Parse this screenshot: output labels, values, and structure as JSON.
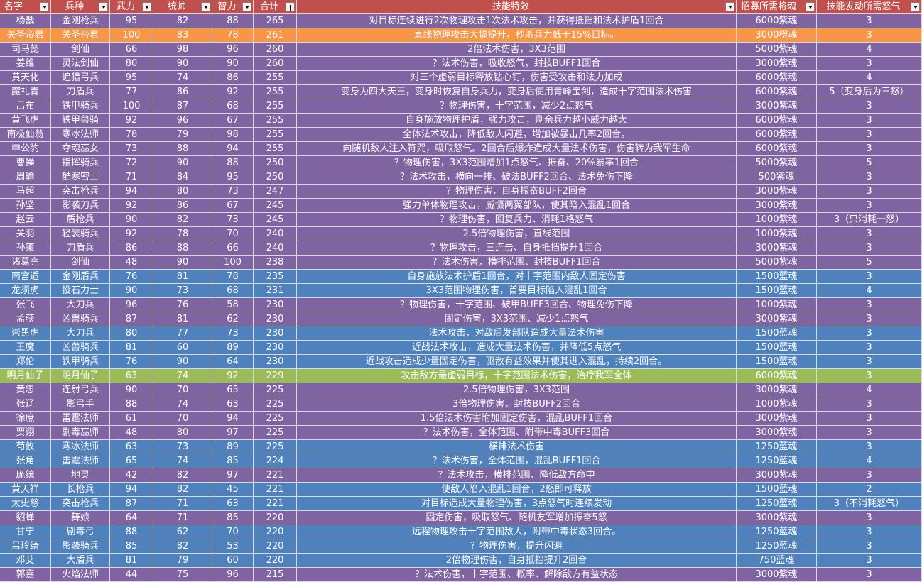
{
  "columns": [
    "名字",
    "兵种",
    "武力",
    "统帅",
    "智力",
    "合计",
    "技能特效",
    "招募所需将魂",
    "技能发动所需怒气"
  ],
  "rows": [
    {
      "name": "杨戬",
      "type": "金刚枪兵",
      "str": "95",
      "lead": "82",
      "int": "88",
      "total": "265",
      "effect": "对目标连续进行2次物理攻击1次法术攻击，并获得抵挡和法术护盾1回合",
      "cost": "6000紫魂",
      "rage": "3",
      "color": "purple"
    },
    {
      "name": "关圣帝君",
      "type": "关圣帝君",
      "str": "100",
      "lead": "83",
      "int": "78",
      "total": "261",
      "effect": "直线物理攻击大幅提升，秒杀兵力低于15%目标。",
      "cost": "3000橙魂",
      "rage": "3",
      "color": "orange"
    },
    {
      "name": "司马懿",
      "type": "剑仙",
      "str": "66",
      "lead": "98",
      "int": "96",
      "total": "260",
      "effect": "2倍法术伤害，3X3范围",
      "cost": "5000紫魂",
      "rage": "4",
      "color": "purple"
    },
    {
      "name": "姜维",
      "type": "灵法剑仙",
      "str": "80",
      "lead": "90",
      "int": "90",
      "total": "260",
      "effect": "？法术伤害，吸收怒气，封技BUFF1回合",
      "cost": "3000紫魂",
      "rage": "3",
      "color": "purple"
    },
    {
      "name": "黄天化",
      "type": "追猎弓兵",
      "str": "95",
      "lead": "74",
      "int": "86",
      "total": "255",
      "effect": "对三个虚弱目标释放钻心钉，伤害受攻击和法力加成",
      "cost": "6000紫魂",
      "rage": "4",
      "color": "purple"
    },
    {
      "name": "魔礼青",
      "type": "刀盾兵",
      "str": "77",
      "lead": "86",
      "int": "92",
      "total": "255",
      "effect": "变身为四大天王，变身时恢复自身兵力，变身后使用青峰宝剑，造成十字范围法术伤害",
      "cost": "6000紫魂",
      "rage": "5（变身后为三怒）",
      "color": "purple"
    },
    {
      "name": "吕布",
      "type": "铁甲骑兵",
      "str": "100",
      "lead": "87",
      "int": "68",
      "total": "255",
      "effect": "？物理伤害，十字范围，减少2点怒气",
      "cost": "3000紫魂",
      "rage": "3",
      "color": "purple"
    },
    {
      "name": "黄飞虎",
      "type": "铁甲兽骑",
      "str": "92",
      "lead": "96",
      "int": "67",
      "total": "255",
      "effect": "自身施放物理护盾，强力攻击，剩余兵力越小威力越大",
      "cost": "6000紫魂",
      "rage": "3",
      "color": "purple"
    },
    {
      "name": "南极仙翁",
      "type": "寒冰法师",
      "str": "78",
      "lead": "79",
      "int": "98",
      "total": "255",
      "effect": "全体法术攻击，降低敌人闪避，增加被暴击几率2回合。",
      "cost": "6000紫魂",
      "rage": "3",
      "color": "purple"
    },
    {
      "name": "申公豹",
      "type": "夺魂巫女",
      "str": "73",
      "lead": "88",
      "int": "94",
      "total": "255",
      "effect": "向随机敌人注入符咒，吸取怒气。2回合后爆炸造成大量法术伤害，伤害转为我军生命",
      "cost": "6000紫魂",
      "rage": "3",
      "color": "purple"
    },
    {
      "name": "曹操",
      "type": "指挥骑兵",
      "str": "72",
      "lead": "90",
      "int": "88",
      "total": "250",
      "effect": "？物理伤害，3X3范围增加1点怒气、振奋、20%暴率1回合",
      "cost": "5000紫魂",
      "rage": "5",
      "color": "purple"
    },
    {
      "name": "周瑜",
      "type": "酷寒密士",
      "str": "71",
      "lead": "84",
      "int": "95",
      "total": "250",
      "effect": "？法术攻击，横向一排、破法BUFF2回合、法术免伤下降",
      "cost": "500紫魂",
      "rage": "3",
      "color": "purple"
    },
    {
      "name": "马超",
      "type": "突击枪兵",
      "str": "94",
      "lead": "80",
      "int": "73",
      "total": "247",
      "effect": "？物理伤害，自身振奋BUFF2回合",
      "cost": "3000紫魂",
      "rage": "3",
      "color": "purple"
    },
    {
      "name": "孙坚",
      "type": "影袭刀兵",
      "str": "92",
      "lead": "86",
      "int": "67",
      "total": "245",
      "effect": "强力单体物理攻击，威慑两翼部队，使其陷入混乱1回合",
      "cost": "3000紫魂",
      "rage": "3",
      "color": "purple"
    },
    {
      "name": "赵云",
      "type": "盾枪兵",
      "str": "90",
      "lead": "82",
      "int": "73",
      "total": "245",
      "effect": "？物理伤害，回复兵力、消耗1格怒气",
      "cost": "1000紫魂",
      "rage": "3（只消耗一怒）",
      "color": "purple"
    },
    {
      "name": "关羽",
      "type": "轻装骑兵",
      "str": "92",
      "lead": "78",
      "int": "70",
      "total": "240",
      "effect": "2.5倍物理伤害，直线范围",
      "cost": "1000紫魂",
      "rage": "3",
      "color": "purple"
    },
    {
      "name": "孙策",
      "type": "刀盾兵",
      "str": "86",
      "lead": "88",
      "int": "66",
      "total": "240",
      "effect": "？物理攻击，三连击、自身抵挡提升1回合",
      "cost": "3000紫魂",
      "rage": "3",
      "color": "purple"
    },
    {
      "name": "诸葛亮",
      "type": "剑仙",
      "str": "48",
      "lead": "90",
      "int": "100",
      "total": "238",
      "effect": "？法术伤害，横排范围、封技BUFF1回合",
      "cost": "5000紫魂",
      "rage": "5",
      "color": "purple"
    },
    {
      "name": "南宫适",
      "type": "金刚盾兵",
      "str": "76",
      "lead": "81",
      "int": "78",
      "total": "235",
      "effect": "自身施放法术护盾1回合，对十字范围内敌人固定伤害",
      "cost": "1500蓝魂",
      "rage": "3",
      "color": "blue"
    },
    {
      "name": "龙须虎",
      "type": "投石力士",
      "str": "90",
      "lead": "73",
      "int": "68",
      "total": "231",
      "effect": "3X3范围物理伤害，首要目标陷入混乱1回合",
      "cost": "1500蓝魂",
      "rage": "4",
      "color": "blue"
    },
    {
      "name": "张飞",
      "type": "大刀兵",
      "str": "96",
      "lead": "76",
      "int": "58",
      "total": "230",
      "effect": "？物理伤害，十字范围、破甲BUFF3回合、物理免伤下降",
      "cost": "1000紫魂",
      "rage": "3",
      "color": "purple"
    },
    {
      "name": "孟获",
      "type": "凶兽骑兵",
      "str": "87",
      "lead": "81",
      "int": "62",
      "total": "230",
      "effect": "固定伤害，3X3范围、减少1点怒气",
      "cost": "3000紫魂",
      "rage": "3",
      "color": "purple"
    },
    {
      "name": "崇黑虎",
      "type": "大刀兵",
      "str": "80",
      "lead": "77",
      "int": "73",
      "total": "230",
      "effect": "法术攻击，对敌后发部队造成大量法术伤害",
      "cost": "1500蓝魂",
      "rage": "3",
      "color": "blue"
    },
    {
      "name": "王魔",
      "type": "凶兽骑兵",
      "str": "81",
      "lead": "60",
      "int": "89",
      "total": "230",
      "effect": "近战法术攻击，造成大量法术伤害，并降低5点怒气",
      "cost": "1500蓝魂",
      "rage": "3",
      "color": "blue"
    },
    {
      "name": "郑伦",
      "type": "铁甲骑兵",
      "str": "76",
      "lead": "90",
      "int": "64",
      "total": "230",
      "effect": "近战攻击造成少量固定伤害，驱散有益效果并使其进入混乱，持续2回合。",
      "cost": "1500蓝魂",
      "rage": "3",
      "color": "blue"
    },
    {
      "name": "明月仙子",
      "type": "明月仙子",
      "str": "63",
      "lead": "74",
      "int": "92",
      "total": "229",
      "effect": "攻击敌方最虚弱目标，十字范围法术伤害，治疗我军全体",
      "cost": "6000紫魂",
      "rage": "3",
      "color": "green"
    },
    {
      "name": "黄忠",
      "type": "连射弓兵",
      "str": "90",
      "lead": "70",
      "int": "65",
      "total": "225",
      "effect": "2.5倍物理伤害，3X3范围",
      "cost": "3000紫魂",
      "rage": "4",
      "color": "purple"
    },
    {
      "name": "张辽",
      "type": "影弓手",
      "str": "88",
      "lead": "74",
      "int": "63",
      "total": "225",
      "effect": "3倍物理伤害，封技BUFF2回合",
      "cost": "1000紫魂",
      "rage": "3",
      "color": "purple"
    },
    {
      "name": "徐庶",
      "type": "雷霆法师",
      "str": "61",
      "lead": "70",
      "int": "94",
      "total": "225",
      "effect": "1.5倍法术伤害附加固定伤害，混乱BUFF1回合",
      "cost": "3000紫魂",
      "rage": "3",
      "color": "purple"
    },
    {
      "name": "贾诩",
      "type": "剧毒巫师",
      "str": "48",
      "lead": "80",
      "int": "97",
      "total": "225",
      "effect": "？法术伤害，全体范围、附带中毒BUFF3回合",
      "cost": "3000紫魂",
      "rage": "3",
      "color": "purple"
    },
    {
      "name": "荀攸",
      "type": "寒冰法师",
      "str": "63",
      "lead": "73",
      "int": "89",
      "total": "225",
      "effect": "横排法术伤害",
      "cost": "1250蓝魂",
      "rage": "3",
      "color": "blue"
    },
    {
      "name": "张角",
      "type": "雷霆法师",
      "str": "65",
      "lead": "74",
      "int": "85",
      "total": "224",
      "effect": "？法术伤害，全体范围，混乱BUFF1回合",
      "cost": "1250蓝魂",
      "rage": "4",
      "color": "blue"
    },
    {
      "name": "庞统",
      "type": "地灵",
      "str": "42",
      "lead": "82",
      "int": "97",
      "total": "221",
      "effect": "？法术攻击，横排范围、降低敌方命中",
      "cost": "3000紫魂",
      "rage": "3",
      "color": "purple"
    },
    {
      "name": "黄天祥",
      "type": "长枪兵",
      "str": "94",
      "lead": "82",
      "int": "45",
      "total": "221",
      "effect": "使敌人陷入混乱1回合，2怒即可释放",
      "cost": "1500蓝魂",
      "rage": "2",
      "color": "blue"
    },
    {
      "name": "太史慈",
      "type": "突击枪兵",
      "str": "87",
      "lead": "71",
      "int": "63",
      "total": "221",
      "effect": "对目标造成大量物理伤害，3点怒气时连续发动",
      "cost": "1250蓝魂",
      "rage": "3（不消耗怒气）",
      "color": "blue"
    },
    {
      "name": "貂蝉",
      "type": "舞娘",
      "str": "64",
      "lead": "71",
      "int": "85",
      "total": "220",
      "effect": "固定伤害，吸取怒气、随机友军增加振奋5怒",
      "cost": "3000紫魂",
      "rage": "3",
      "color": "purple"
    },
    {
      "name": "甘宁",
      "type": "剧毒弓",
      "str": "88",
      "lead": "62",
      "int": "70",
      "total": "220",
      "effect": "远程物理攻击十字范围敌人，附带中毒状态3回合。",
      "cost": "1250蓝魂",
      "rage": "3",
      "color": "blue"
    },
    {
      "name": "吕玲绮",
      "type": "影袭骑兵",
      "str": "85",
      "lead": "82",
      "int": "53",
      "total": "220",
      "effect": "？物理伤害，提升闪避",
      "cost": "1250蓝魂",
      "rage": "3",
      "color": "blue"
    },
    {
      "name": "邓艾",
      "type": "大盾兵",
      "str": "81",
      "lead": "79",
      "int": "60",
      "total": "220",
      "effect": "2倍物理伤害，自身抵挡提升2回合",
      "cost": "750蓝魂",
      "rage": "3",
      "color": "blue"
    },
    {
      "name": "郭嘉",
      "type": "火焰法师",
      "str": "44",
      "lead": "75",
      "int": "96",
      "total": "215",
      "effect": "？法术伤害，十字范围、概率、解除敌方有益状态",
      "cost": "3000紫魂",
      "rage": "3",
      "color": "purple"
    }
  ]
}
